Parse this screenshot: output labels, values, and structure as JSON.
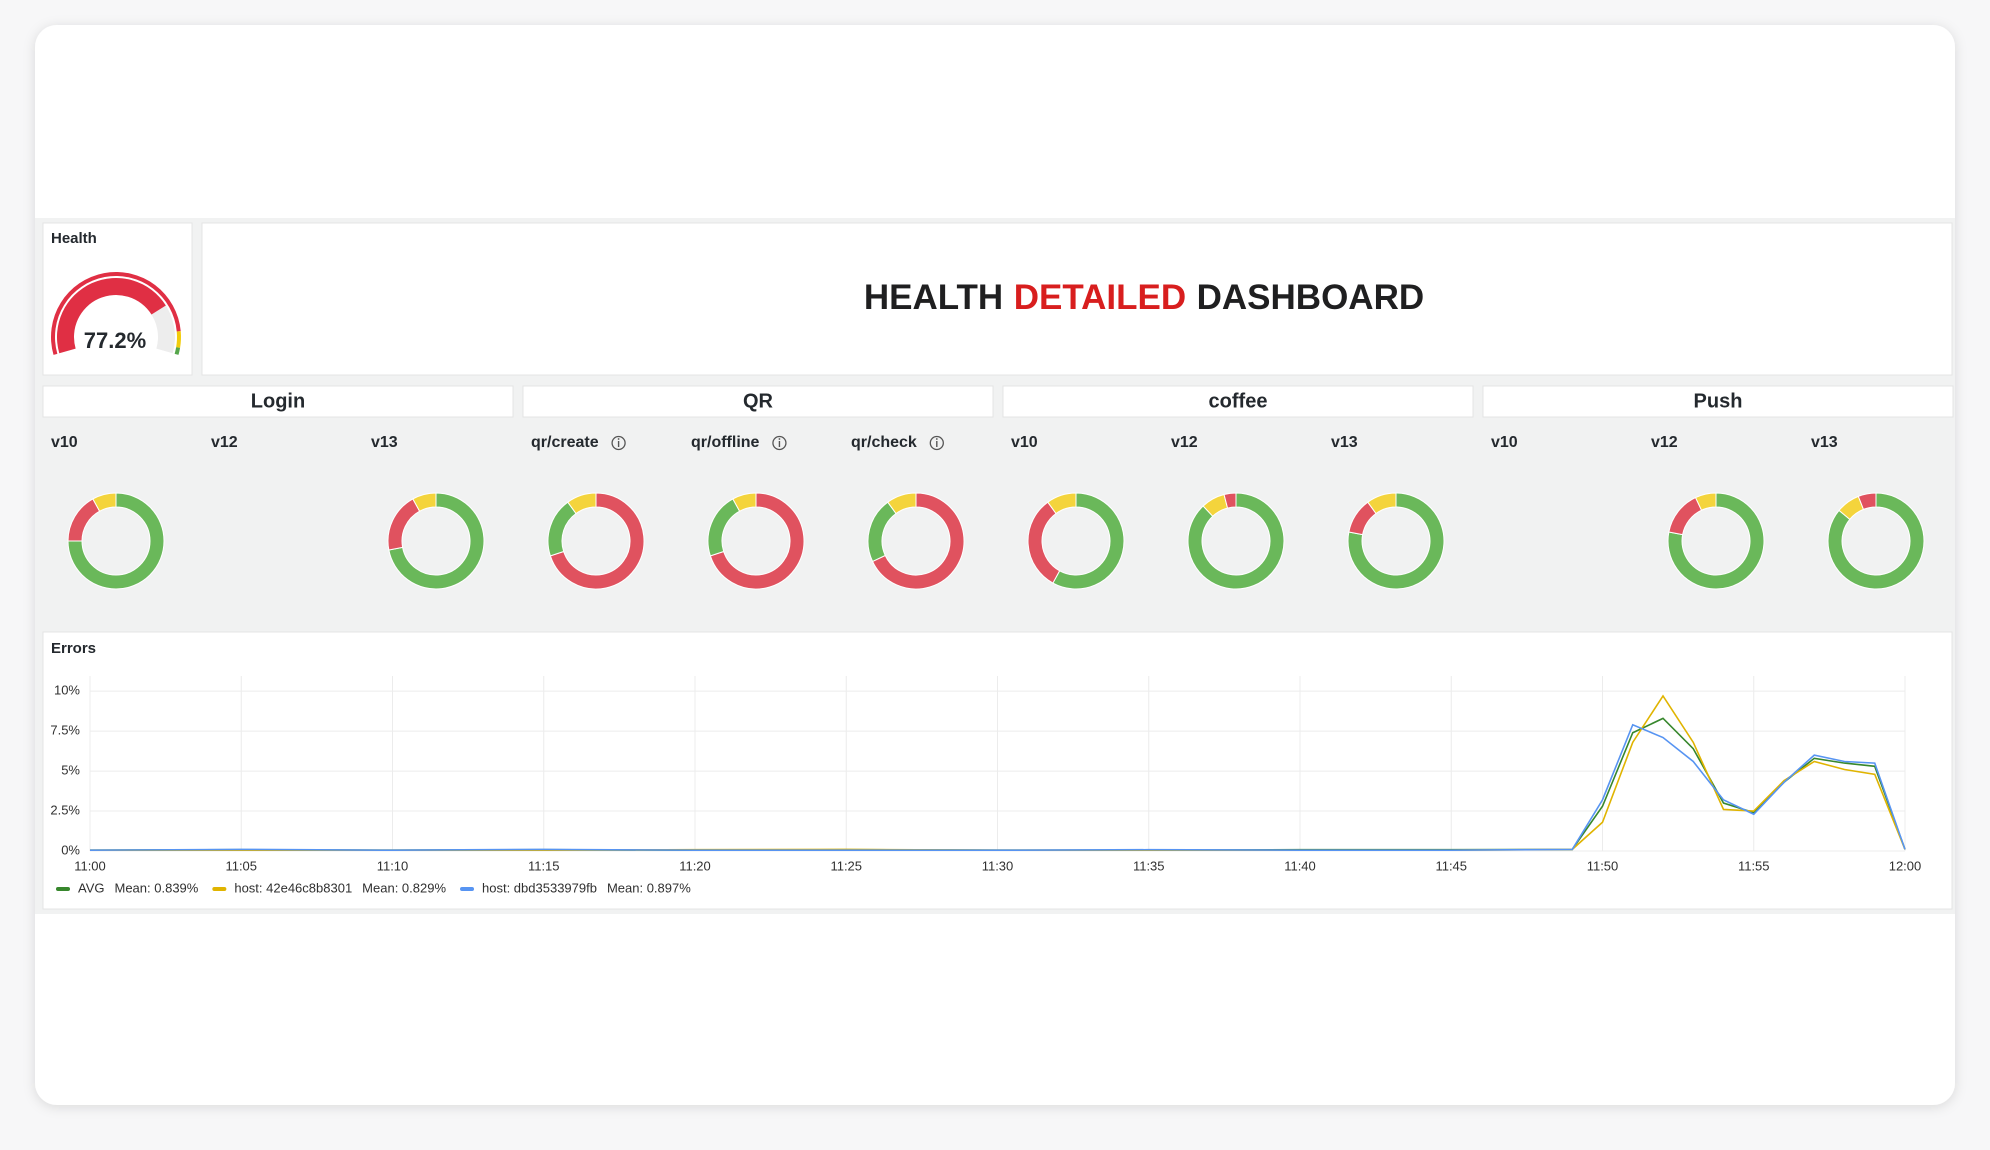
{
  "gauge": {
    "title": "Health",
    "value": 77.2,
    "label": "77.2%",
    "range": [
      0,
      100
    ],
    "color": "#e02f44",
    "track": "#ededed",
    "thresholds": [
      {
        "value": 0,
        "color": "#e02f44"
      },
      {
        "value": 90,
        "color": "#f2cc0c"
      },
      {
        "value": 97,
        "color": "#56a64b"
      }
    ]
  },
  "header": {
    "title": [
      {
        "text": "HEALTH",
        "color": "#1f1f20"
      },
      {
        "text": "DETAILED",
        "color": "#d81e1e"
      },
      {
        "text": "DASHBOARD",
        "color": "#1f1f20"
      }
    ]
  },
  "groups": [
    {
      "title": "Login",
      "panels": [
        {
          "title": "v10",
          "values": [
            75,
            17,
            8
          ],
          "colors": [
            "#6ab85a",
            "#e0525f",
            "#f4d43c"
          ]
        },
        {
          "title": "v12"
        },
        {
          "title": "v13",
          "values": [
            72,
            20,
            8
          ],
          "colors": [
            "#6ab85a",
            "#e0525f",
            "#f4d43c"
          ]
        }
      ]
    },
    {
      "title": "QR",
      "panels": [
        {
          "title": "qr/create",
          "info": true,
          "values": [
            70,
            20,
            10
          ],
          "colors": [
            "#e0525f",
            "#6ab85a",
            "#f4d43c"
          ]
        },
        {
          "title": "qr/offline",
          "info": true,
          "values": [
            70,
            22,
            8
          ],
          "colors": [
            "#e0525f",
            "#6ab85a",
            "#f4d43c"
          ]
        },
        {
          "title": "qr/check",
          "info": true,
          "values": [
            68,
            22,
            10
          ],
          "colors": [
            "#e0525f",
            "#6ab85a",
            "#f4d43c"
          ]
        }
      ]
    },
    {
      "title": "coffee",
      "panels": [
        {
          "title": "v10",
          "values": [
            58,
            32,
            10
          ],
          "colors": [
            "#6ab85a",
            "#e0525f",
            "#f4d43c"
          ]
        },
        {
          "title": "v12",
          "values": [
            88,
            8,
            4
          ],
          "colors": [
            "#6ab85a",
            "#f4d43c",
            "#e0525f"
          ]
        },
        {
          "title": "v13",
          "values": [
            78,
            12,
            10
          ],
          "colors": [
            "#6ab85a",
            "#e0525f",
            "#f4d43c"
          ]
        }
      ]
    },
    {
      "title": "Push",
      "panels": [
        {
          "title": "v10"
        },
        {
          "title": "v12",
          "values": [
            78,
            15,
            7
          ],
          "colors": [
            "#6ab85a",
            "#e0525f",
            "#f4d43c"
          ]
        },
        {
          "title": "v13",
          "values": [
            86,
            8,
            6
          ],
          "colors": [
            "#6ab85a",
            "#f4d43c",
            "#e0525f"
          ]
        }
      ]
    }
  ],
  "chart_data": {
    "type": "line",
    "title": "Errors",
    "x": [
      "11:00",
      "11:05",
      "11:10",
      "11:15",
      "11:20",
      "11:25",
      "11:30",
      "11:35",
      "11:40",
      "11:45",
      "11:49",
      "11:50",
      "11:51",
      "11:52",
      "11:53",
      "11:54",
      "11:55",
      "11:56",
      "11:57",
      "11:58",
      "11:59",
      "12:00"
    ],
    "xlim": [
      "11:00",
      "12:00"
    ],
    "xticks": [
      "11:00",
      "11:05",
      "11:10",
      "11:15",
      "11:20",
      "11:25",
      "11:30",
      "11:35",
      "11:40",
      "11:45",
      "11:50",
      "11:55",
      "12:00"
    ],
    "ylim": [
      0,
      10.7
    ],
    "yticks": [
      {
        "value": 0,
        "label": "0%"
      },
      {
        "value": 2.5,
        "label": "2.5%"
      },
      {
        "value": 5,
        "label": "5%"
      },
      {
        "value": 7.5,
        "label": "7.5%"
      },
      {
        "value": 10,
        "label": "10%"
      }
    ],
    "grid": true,
    "series": [
      {
        "name": "AVG",
        "stat": "Mean: 0.839%",
        "color": "#37872d",
        "values": [
          0.05,
          0.08,
          0.05,
          0.08,
          0.05,
          0.08,
          0.05,
          0.05,
          0.08,
          0.08,
          0.1,
          2.8,
          7.4,
          8.3,
          6.4,
          3.0,
          2.4,
          4.3,
          5.8,
          5.5,
          5.3,
          0.1
        ]
      },
      {
        "name": "host: 42e46c8b8301",
        "stat": "Mean: 0.829%",
        "color": "#e0b400",
        "values": [
          0.05,
          0.05,
          0.05,
          0.05,
          0.08,
          0.1,
          0.05,
          0.05,
          0.05,
          0.05,
          0.1,
          1.8,
          6.8,
          9.7,
          6.8,
          2.6,
          2.5,
          4.4,
          5.6,
          5.1,
          4.8,
          0.1
        ]
      },
      {
        "name": "host: dbd3533979fb",
        "stat": "Mean: 0.897%",
        "color": "#5794f2",
        "values": [
          0.05,
          0.1,
          0.05,
          0.1,
          0.05,
          0.05,
          0.05,
          0.08,
          0.05,
          0.05,
          0.1,
          3.2,
          7.9,
          7.1,
          5.6,
          3.2,
          2.3,
          4.3,
          6.0,
          5.6,
          5.5,
          0.1
        ]
      }
    ]
  }
}
